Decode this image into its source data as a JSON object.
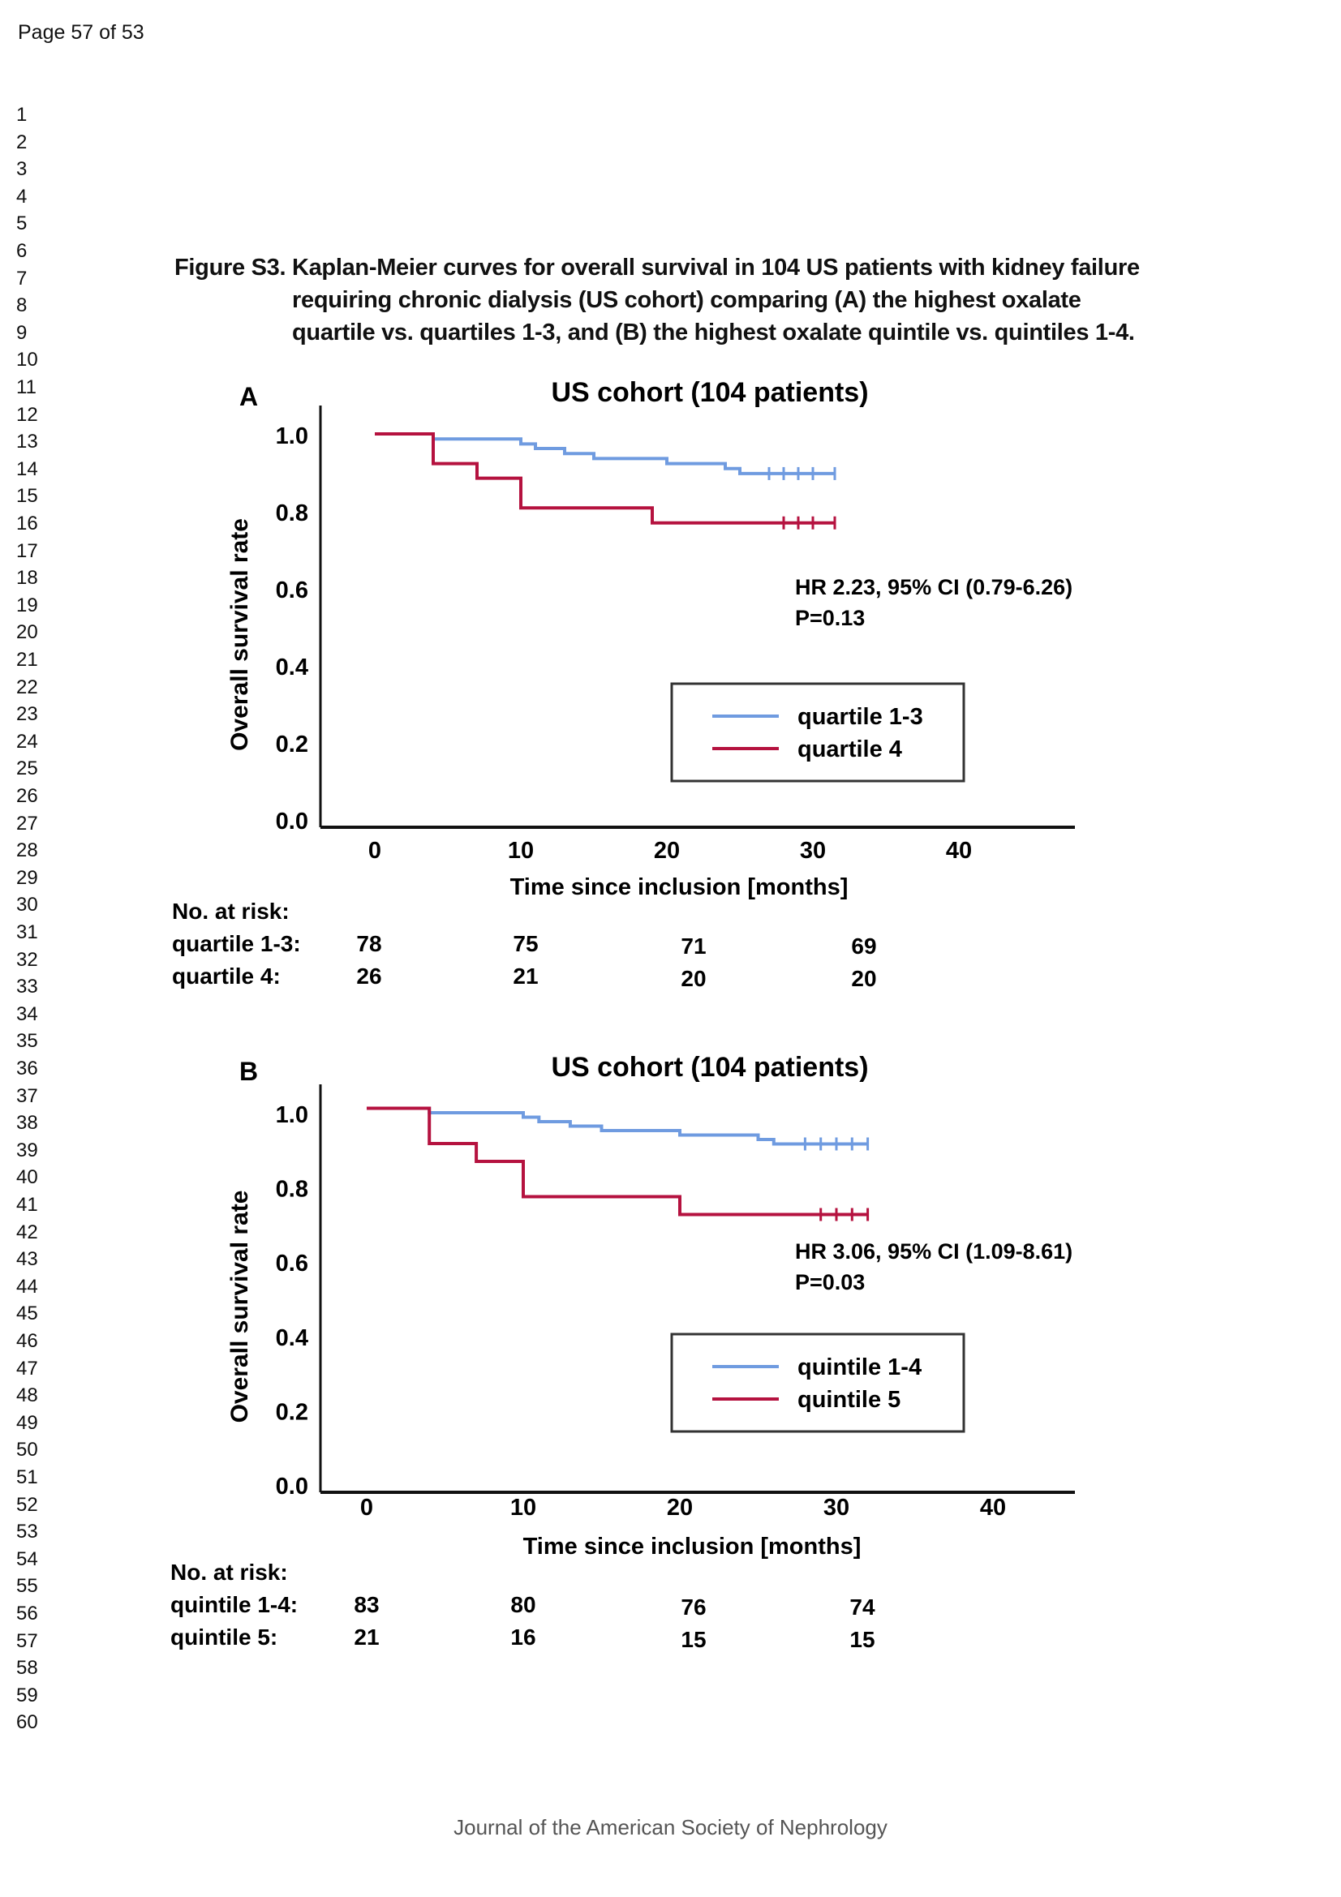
{
  "page_header": "Page 57 of 53",
  "line_numbers": [
    "1",
    "2",
    "3",
    "4",
    "5",
    "6",
    "7",
    "8",
    "9",
    "10",
    "11",
    "12",
    "13",
    "14",
    "15",
    "16",
    "17",
    "18",
    "19",
    "20",
    "21",
    "22",
    "23",
    "24",
    "25",
    "26",
    "27",
    "28",
    "29",
    "30",
    "31",
    "32",
    "33",
    "34",
    "35",
    "36",
    "37",
    "38",
    "39",
    "40",
    "41",
    "42",
    "43",
    "44",
    "45",
    "46",
    "47",
    "48",
    "49",
    "50",
    "51",
    "52",
    "53",
    "54",
    "55",
    "56",
    "57",
    "58",
    "59",
    "60"
  ],
  "caption": {
    "line1": "Figure S3. Kaplan-Meier curves for overall survival in 104 US patients with kidney failure",
    "line2": "requiring chronic dialysis (US cohort) comparing (A) the highest oxalate",
    "line3": "quartile vs. quartiles 1-3, and (B) the highest oxalate quintile vs. quintiles 1-4."
  },
  "footer": "Journal of the American Society of Nephrology",
  "colors": {
    "series_low": "#6f9be0",
    "series_high": "#b5123f",
    "axis": "#111111",
    "legend_border": "#333333"
  },
  "chart_data": [
    {
      "panel": "A",
      "type": "line",
      "subtype": "kaplan-meier step",
      "title": "US cohort (104 patients)",
      "xlabel": "Time since inclusion [months]",
      "ylabel": "Overall survival rate",
      "xlim": [
        -4,
        42
      ],
      "ylim": [
        0,
        1.05
      ],
      "xticks": [
        "0",
        "10",
        "20",
        "30",
        "40"
      ],
      "xtick_values": [
        0,
        10,
        20,
        30,
        40
      ],
      "yticks": [
        "0.0",
        "0.2",
        "0.4",
        "0.6",
        "0.8",
        "1.0"
      ],
      "ytick_values": [
        0,
        0.2,
        0.4,
        0.6,
        0.8,
        1.0
      ],
      "grid": false,
      "legend_position": "center-right",
      "annotation": {
        "line1": "HR 2.23, 95% CI (0.79-6.26)",
        "line2": "P=0.13"
      },
      "series": [
        {
          "name": "quartile 1-3",
          "color_key": "series_low",
          "steps": [
            [
              0,
              1.0
            ],
            [
              4,
              1.0
            ],
            [
              4,
              0.987
            ],
            [
              10,
              0.987
            ],
            [
              10,
              0.974
            ],
            [
              11,
              0.974
            ],
            [
              11,
              0.962
            ],
            [
              13,
              0.962
            ],
            [
              13,
              0.949
            ],
            [
              15,
              0.949
            ],
            [
              15,
              0.936
            ],
            [
              20,
              0.936
            ],
            [
              20,
              0.923
            ],
            [
              24,
              0.923
            ],
            [
              24,
              0.91
            ],
            [
              25,
              0.91
            ],
            [
              25,
              0.897
            ],
            [
              31.5,
              0.897
            ]
          ],
          "censor_times": [
            27,
            28,
            29,
            30,
            31.5
          ]
        },
        {
          "name": "quartile 4",
          "color_key": "series_high",
          "steps": [
            [
              0,
              1.0
            ],
            [
              4,
              1.0
            ],
            [
              4,
              0.923
            ],
            [
              7,
              0.923
            ],
            [
              7,
              0.885
            ],
            [
              10,
              0.885
            ],
            [
              10,
              0.808
            ],
            [
              19,
              0.808
            ],
            [
              19,
              0.769
            ],
            [
              31.5,
              0.769
            ]
          ],
          "censor_times": [
            28,
            29,
            30,
            31.5
          ]
        }
      ],
      "at_risk": {
        "label": "No. at risk:",
        "rows": [
          {
            "name": "quartile 1-3:",
            "values": [
              "78",
              "75",
              "71",
              "69"
            ]
          },
          {
            "name": "quartile 4:",
            "values": [
              "26",
              "21",
              "20",
              "20"
            ]
          }
        ]
      }
    },
    {
      "panel": "B",
      "type": "line",
      "subtype": "kaplan-meier step",
      "title": "US cohort (104 patients)",
      "xlabel": "Time since inclusion [months]",
      "ylabel": "Overall survival rate",
      "xlim": [
        -4,
        42
      ],
      "ylim": [
        0,
        1.05
      ],
      "xticks": [
        "0",
        "10",
        "20",
        "30",
        "40"
      ],
      "xtick_values": [
        0,
        10,
        20,
        30,
        40
      ],
      "yticks": [
        "0.0",
        "0.2",
        "0.4",
        "0.6",
        "0.8",
        "1.0"
      ],
      "ytick_values": [
        0,
        0.2,
        0.4,
        0.6,
        0.8,
        1.0
      ],
      "grid": false,
      "legend_position": "center-right",
      "annotation": {
        "line1": "HR 3.06, 95% CI (1.09-8.61)",
        "line2": "P=0.03"
      },
      "series": [
        {
          "name": "quintile 1-4",
          "color_key": "series_low",
          "steps": [
            [
              0,
              1.012
            ],
            [
              4,
              1.012
            ],
            [
              4,
              1.0
            ],
            [
              10,
              1.0
            ],
            [
              10,
              0.988
            ],
            [
              11,
              0.988
            ],
            [
              11,
              0.976
            ],
            [
              13,
              0.976
            ],
            [
              13,
              0.964
            ],
            [
              15,
              0.964
            ],
            [
              15,
              0.952
            ],
            [
              20,
              0.952
            ],
            [
              20,
              0.94
            ],
            [
              25,
              0.94
            ],
            [
              25,
              0.928
            ],
            [
              26,
              0.928
            ],
            [
              26,
              0.916
            ],
            [
              32,
              0.916
            ]
          ],
          "censor_times": [
            28,
            29,
            30,
            31,
            32
          ]
        },
        {
          "name": "quintile 5",
          "color_key": "series_high",
          "steps": [
            [
              0,
              1.012
            ],
            [
              4,
              1.012
            ],
            [
              4,
              0.917
            ],
            [
              7,
              0.917
            ],
            [
              7,
              0.869
            ],
            [
              10,
              0.869
            ],
            [
              10,
              0.774
            ],
            [
              20,
              0.774
            ],
            [
              20,
              0.726
            ],
            [
              32,
              0.726
            ]
          ],
          "censor_times": [
            29,
            30,
            31,
            32
          ]
        }
      ],
      "at_risk": {
        "label": "No. at risk:",
        "rows": [
          {
            "name": "quintile 1-4:",
            "values": [
              "83",
              "80",
              "76",
              "74"
            ]
          },
          {
            "name": "quintile 5:",
            "values": [
              "21",
              "16",
              "15",
              "15"
            ]
          }
        ]
      }
    }
  ]
}
